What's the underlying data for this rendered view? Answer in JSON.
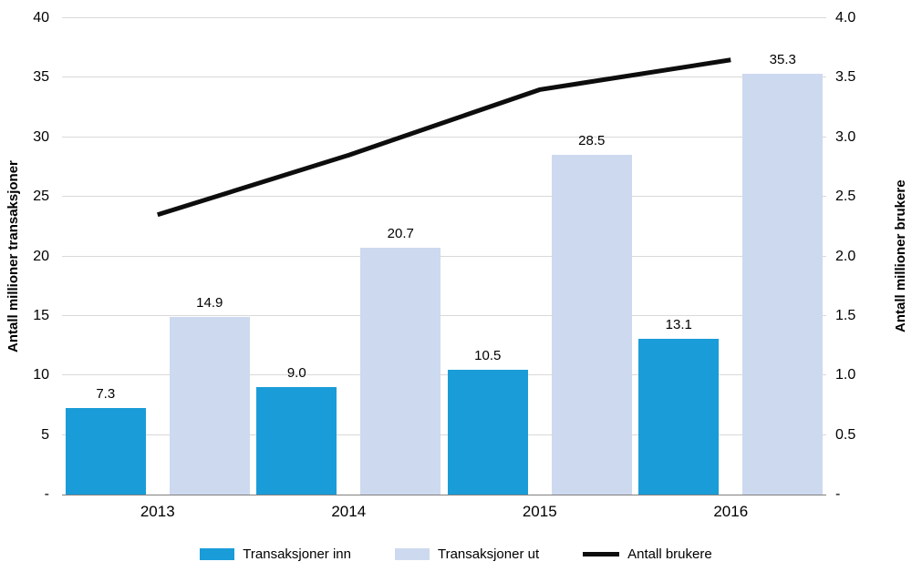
{
  "chart_data": {
    "type": "bar",
    "title": "",
    "categories": [
      "2013",
      "2014",
      "2015",
      "2016"
    ],
    "series": [
      {
        "name": "Transaksjoner inn",
        "type": "bar",
        "axis": "left",
        "color": "#1a9cd8",
        "values": [
          7.3,
          9.0,
          10.5,
          13.1
        ],
        "value_labels": [
          "7.3",
          "9.0",
          "10.5",
          "13.1"
        ]
      },
      {
        "name": "Transaksjoner ut",
        "type": "bar",
        "axis": "left",
        "color": "#cdd9ef",
        "values": [
          14.9,
          20.7,
          28.5,
          35.3
        ],
        "value_labels": [
          "14.9",
          "20.7",
          "28.5",
          "35.3"
        ]
      },
      {
        "name": "Antall brukere",
        "type": "line",
        "axis": "right",
        "color": "#0d0d0d",
        "values": [
          2.35,
          2.85,
          3.4,
          3.65
        ]
      }
    ],
    "left_axis": {
      "title": "Antall millioner transaksjoner",
      "min": 0,
      "max": 40,
      "step": 5,
      "tick_labels": [
        "-",
        "5",
        "10",
        "15",
        "20",
        "25",
        "30",
        "35",
        "40"
      ]
    },
    "right_axis": {
      "title": "Antall millioner brukere",
      "min": 0,
      "max": 4,
      "step": 0.5,
      "tick_labels": [
        "-",
        "0.5",
        "1.0",
        "1.5",
        "2.0",
        "2.5",
        "3.0",
        "3.5",
        "4.0"
      ]
    },
    "grid": true,
    "legend_position": "bottom",
    "legend": [
      "Transaksjoner inn",
      "Transaksjoner ut",
      "Antall brukere"
    ]
  },
  "style": {
    "grid_color": "#d9d9d9",
    "axis_line_color": "#7f7f7f",
    "text_color": "#000000",
    "background": "#ffffff",
    "line_stroke_width": 5
  }
}
